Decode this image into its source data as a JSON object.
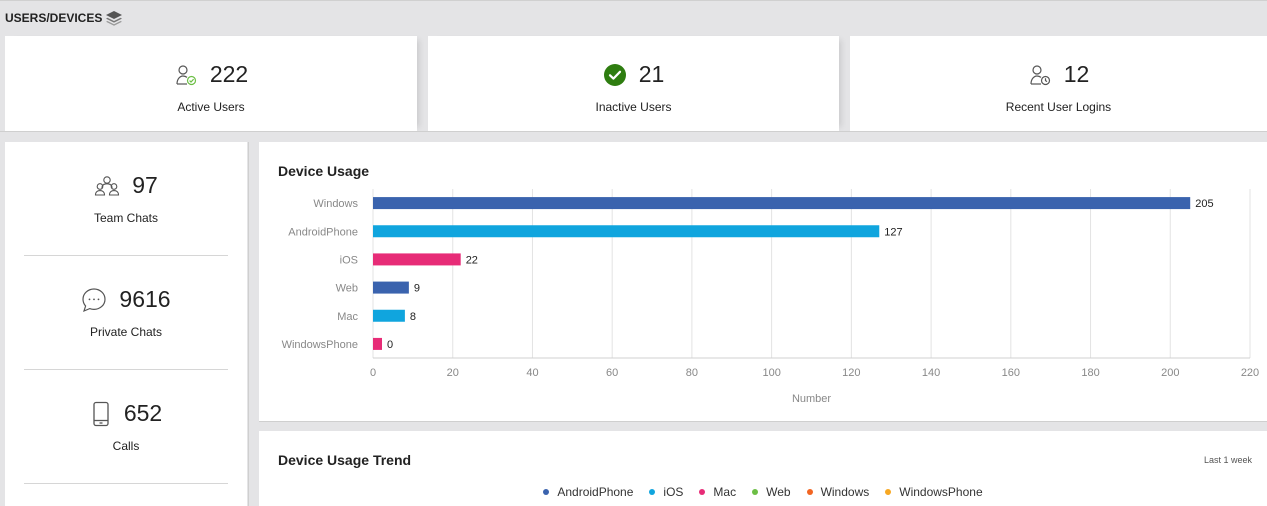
{
  "header": {
    "title": "USERS/DEVICES",
    "icon": "layers-icon"
  },
  "stats": [
    {
      "value": "222",
      "label": "Active Users",
      "icon": "user-check-icon"
    },
    {
      "value": "21",
      "label": "Inactive Users",
      "icon": "check-circle-icon",
      "icon_color": "#2e7d10"
    },
    {
      "value": "12",
      "label": "Recent User Logins",
      "icon": "user-clock-icon"
    }
  ],
  "side_stats": [
    {
      "value": "97",
      "label": "Team Chats",
      "icon": "team-icon"
    },
    {
      "value": "9616",
      "label": "Private Chats",
      "icon": "chat-bubble-icon"
    },
    {
      "value": "652",
      "label": "Calls",
      "icon": "phone-icon"
    }
  ],
  "device_usage": {
    "title": "Device Usage",
    "chart_data": {
      "type": "bar",
      "orientation": "horizontal",
      "categories": [
        "Windows",
        "AndroidPhone",
        "iOS",
        "Web",
        "Mac",
        "WindowsPhone"
      ],
      "values": [
        205,
        127,
        22,
        9,
        8,
        0
      ],
      "colors": [
        "#3a63ae",
        "#10a5de",
        "#e72c77",
        "#3a63ae",
        "#10a5de",
        "#e72c77"
      ],
      "xlabel": "Number",
      "ylabel": "",
      "xlim": [
        0,
        220
      ],
      "ticks": [
        0,
        20,
        40,
        60,
        80,
        100,
        120,
        140,
        160,
        180,
        200,
        220
      ],
      "grid": true
    }
  },
  "device_trend": {
    "title": "Device Usage Trend",
    "range": "Last 1 week",
    "legend": [
      {
        "name": "AndroidPhone",
        "color": "#3a63ae"
      },
      {
        "name": "iOS",
        "color": "#10a5de"
      },
      {
        "name": "Mac",
        "color": "#e72c77"
      },
      {
        "name": "Web",
        "color": "#6cbe45"
      },
      {
        "name": "Windows",
        "color": "#f26522"
      },
      {
        "name": "WindowsPhone",
        "color": "#f7a823"
      }
    ]
  }
}
